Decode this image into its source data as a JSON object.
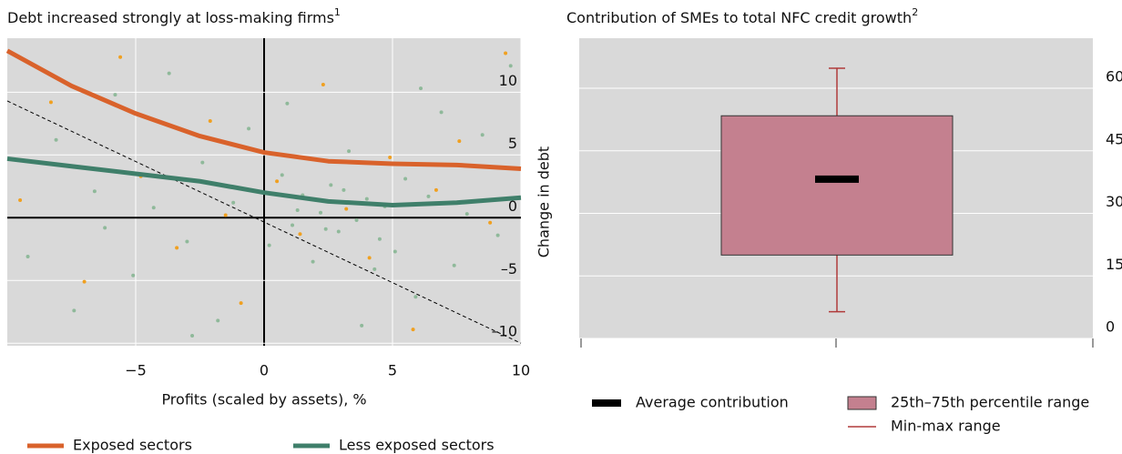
{
  "chart_data": [
    {
      "type": "scatter",
      "title": "Debt increased strongly at loss-making firms",
      "title_note": "1",
      "x_label": "Profits (scaled by assets), %",
      "y_label": "Change in debt",
      "xlim": [
        -10,
        10
      ],
      "ylim": [
        -10.2,
        14.3
      ],
      "xticks": [
        {
          "value": -5,
          "label": "−5"
        },
        0,
        5,
        10
      ],
      "yticks": [
        10,
        5,
        0,
        {
          "value": -5,
          "label": "–5"
        },
        {
          "value": -10,
          "label": "–10"
        }
      ],
      "grid": true,
      "series": [
        {
          "name": "Exposed sectors",
          "color": "#d9622b",
          "x": [
            -10,
            -7.5,
            -5,
            -2.5,
            0,
            2.5,
            5,
            7.5,
            10
          ],
          "values": [
            13.3,
            10.5,
            8.3,
            6.5,
            5.2,
            4.5,
            4.3,
            4.2,
            3.9
          ]
        },
        {
          "name": "Less exposed sectors",
          "color": "#3f7f6a",
          "x": [
            -10,
            -7.5,
            -5,
            -2.5,
            0,
            2.5,
            5,
            7.5,
            10
          ],
          "values": [
            4.7,
            4.1,
            3.5,
            2.9,
            2.0,
            1.3,
            1.0,
            1.2,
            1.6
          ]
        }
      ],
      "points": [
        {
          "color": "#8fb99a",
          "x": [
            -9.2,
            -8.1,
            -7.4,
            -6.6,
            -5.8,
            -5.1,
            -4.3,
            -3.7,
            -3.0,
            -2.4,
            -1.8,
            -1.2,
            -0.6,
            0.2,
            0.7,
            1.1,
            1.5,
            1.9,
            2.2,
            2.6,
            2.9,
            3.3,
            3.6,
            4.0,
            4.3,
            4.7,
            5.1,
            5.5,
            5.9,
            6.4,
            6.9,
            7.4,
            7.9,
            8.5,
            9.1,
            9.6,
            1.3,
            2.4,
            3.1,
            4.5,
            0.9,
            3.8,
            -2.8,
            -6.2,
            6.1
          ],
          "values": [
            -3.1,
            6.2,
            -7.4,
            2.1,
            9.8,
            -4.6,
            0.8,
            11.5,
            -1.9,
            4.4,
            -8.2,
            1.2,
            7.1,
            -2.2,
            3.4,
            -0.6,
            1.8,
            -3.5,
            0.4,
            2.6,
            -1.1,
            5.3,
            -0.2,
            1.5,
            -4.1,
            0.9,
            -2.7,
            3.1,
            -6.3,
            1.7,
            8.4,
            -3.8,
            0.3,
            6.6,
            -1.4,
            12.1,
            0.6,
            -0.9,
            2.2,
            -1.7,
            9.1,
            -8.6,
            -9.4,
            -0.8,
            10.3
          ]
        },
        {
          "color": "#f0a020",
          "x": [
            -9.5,
            -8.3,
            -7.0,
            -5.6,
            -4.8,
            -3.4,
            -2.1,
            -0.9,
            0.5,
            1.4,
            2.3,
            3.2,
            4.1,
            4.9,
            5.8,
            6.7,
            7.6,
            8.8,
            9.4,
            -1.5
          ],
          "values": [
            1.4,
            9.2,
            -5.1,
            12.8,
            3.3,
            -2.4,
            7.7,
            -6.8,
            2.9,
            -1.3,
            10.6,
            0.7,
            -3.2,
            4.8,
            -8.9,
            2.2,
            6.1,
            -0.4,
            13.1,
            0.2
          ]
        }
      ],
      "reference_line": {
        "x": [
          -10,
          10
        ],
        "values": [
          9.3,
          -10
        ]
      }
    },
    {
      "type": "box",
      "title": "Contribution of SMEs to total NFC credit growth",
      "title_note": "2",
      "ylim": [
        0,
        72
      ],
      "yticks": [
        0,
        15,
        30,
        45,
        60
      ],
      "grid": true,
      "min": 6.4,
      "q1": 20,
      "mean": 38.2,
      "q3": 53.4,
      "max": 64.8,
      "mean_label": "Average contribution",
      "box_label": "25th–75th percentile range",
      "range_label": "Min-max range",
      "box_color": "#c4808f",
      "mean_color": "#000000",
      "range_color": "#b03a3a"
    }
  ]
}
